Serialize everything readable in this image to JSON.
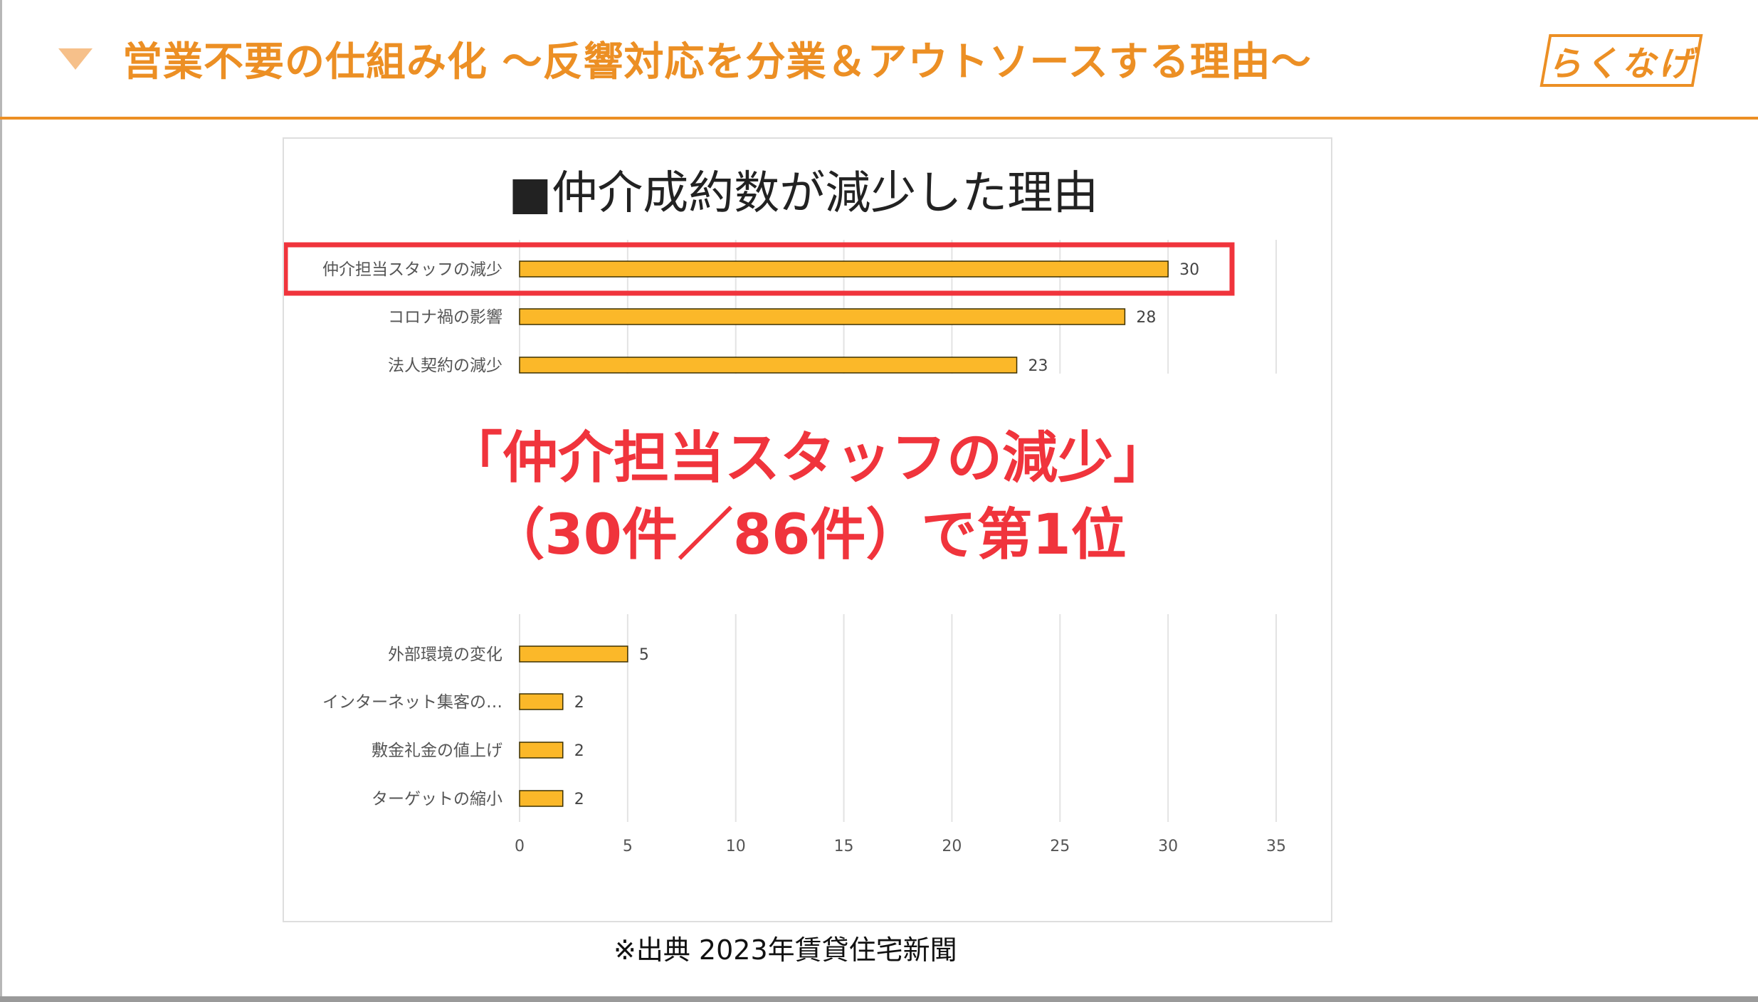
{
  "header": {
    "title": "営業不要の仕組み化 〜反響対応を分業＆アウトソースする理由〜",
    "logo_text": "らくなげ",
    "marker_icon": "triangle-down-icon",
    "accent_color": "#ec8f24",
    "marker_color": "#f6c08a"
  },
  "chart_data": {
    "type": "bar",
    "orientation": "horizontal",
    "title": "■仲介成約数が減少した理由",
    "categories": [
      "仲介担当スタッフの減少",
      "コロナ禍の影響",
      "法人契約の減少",
      "外部環境の変化",
      "インターネット集客の…",
      "敷金礼金の値上げ",
      "ターゲットの縮小"
    ],
    "values": [
      30,
      28,
      23,
      5,
      2,
      2,
      2
    ],
    "xlim": [
      0,
      35
    ],
    "xticks": [
      0,
      5,
      10,
      15,
      20,
      25,
      30,
      35
    ],
    "grid": true,
    "bar_color": "#fbb829",
    "highlight_color": "#f0343c",
    "highlight_category": "仲介担当スタッフの減少"
  },
  "overlay": {
    "line1": "「仲介担当スタッフの減少」",
    "line2": "（30件／86件）で第1位",
    "color": "#f0343c"
  },
  "source": "※出典 2023年賃貸住宅新聞"
}
